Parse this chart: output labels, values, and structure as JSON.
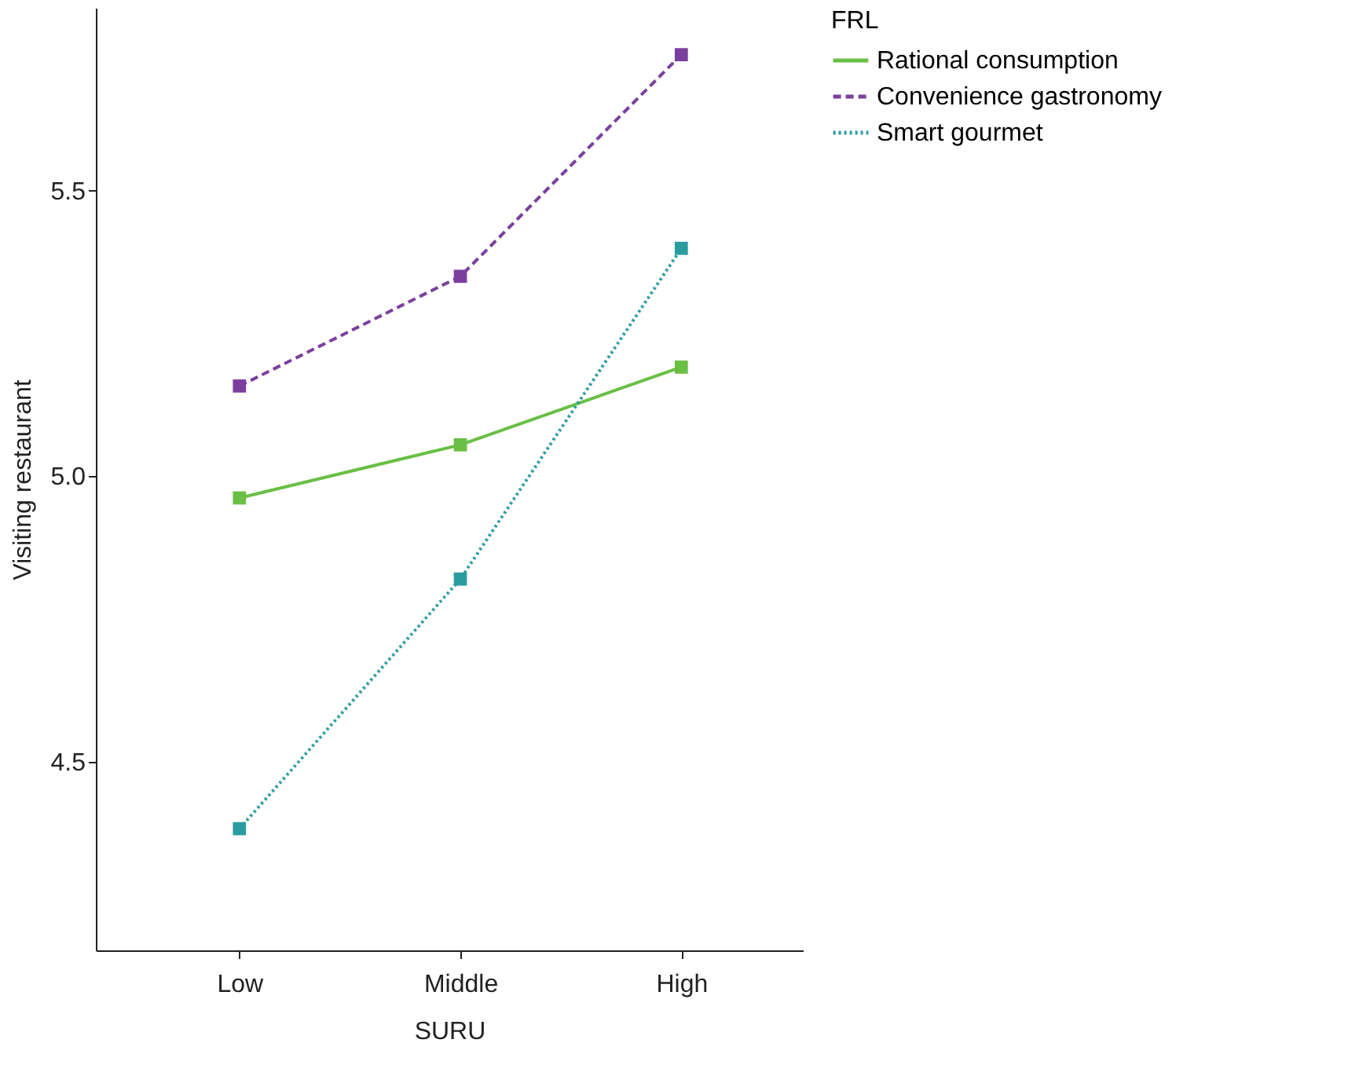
{
  "chart_data": {
    "type": "line",
    "xlabel": "SURU",
    "ylabel": "Visiting restaurant",
    "legend_title": "FRL",
    "legend": "right",
    "marker": "square",
    "grid": false,
    "categories": [
      "Low",
      "Middle",
      "High"
    ],
    "ylim": [
      4.17,
      5.82
    ],
    "yticks": [
      {
        "value": 4.5,
        "label": "4.5"
      },
      {
        "value": 5.0,
        "label": "5.0"
      },
      {
        "value": 5.5,
        "label": "5.5"
      }
    ],
    "series": [
      {
        "name": "Rational consumption",
        "color": "#6abf45",
        "line_style": "solid",
        "values": [
          4.962,
          5.055,
          5.191
        ]
      },
      {
        "name": "Convenience gastronomy",
        "color": "#7b3f9e",
        "line_style": "dashed",
        "values": [
          5.158,
          5.35,
          5.738
        ]
      },
      {
        "name": "Smart gourmet",
        "color": "#2a9ca0",
        "line_style": "dotted",
        "values": [
          4.383,
          4.82,
          5.399
        ]
      }
    ]
  }
}
